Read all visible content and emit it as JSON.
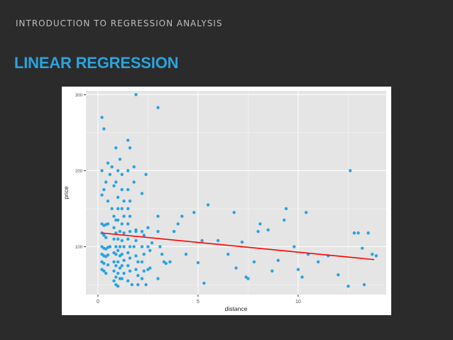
{
  "slide": {
    "header": "INTRODUCTION TO REGRESSION ANALYSIS",
    "title": "LINEAR REGRESSION"
  },
  "colors": {
    "background": "#2b2b2b",
    "title": "#2aa4dc",
    "header": "#bdbdbd",
    "panel": "#e5e5e5",
    "grid": "#ffffff",
    "points": "#29a3df",
    "fit_line": "#ff0000"
  },
  "chart_data": {
    "type": "scatter",
    "title": "",
    "xlabel": "distance",
    "ylabel": "price",
    "xlim": [
      -0.6,
      14.4
    ],
    "ylim": [
      37,
      305
    ],
    "xticks": [
      0,
      5,
      10
    ],
    "yticks": [
      100,
      200,
      300
    ],
    "grid": true,
    "fit_line": {
      "x": [
        0.2,
        13.8
      ],
      "y": [
        118,
        83
      ]
    },
    "points": [
      [
        0.2,
        270
      ],
      [
        0.3,
        255
      ],
      [
        0.2,
        200
      ],
      [
        0.4,
        185
      ],
      [
        0.3,
        175
      ],
      [
        0.2,
        168
      ],
      [
        0.5,
        160
      ],
      [
        0.2,
        130
      ],
      [
        0.3,
        128
      ],
      [
        0.4,
        129
      ],
      [
        0.5,
        130
      ],
      [
        0.2,
        118
      ],
      [
        0.3,
        115
      ],
      [
        0.4,
        112
      ],
      [
        0.2,
        100
      ],
      [
        0.3,
        98
      ],
      [
        0.4,
        97
      ],
      [
        0.5,
        99
      ],
      [
        0.6,
        100
      ],
      [
        0.2,
        90
      ],
      [
        0.3,
        88
      ],
      [
        0.4,
        87
      ],
      [
        0.5,
        89
      ],
      [
        0.2,
        80
      ],
      [
        0.3,
        78
      ],
      [
        0.5,
        76
      ],
      [
        0.2,
        70
      ],
      [
        0.3,
        68
      ],
      [
        0.4,
        65
      ],
      [
        0.5,
        210
      ],
      [
        0.6,
        195
      ],
      [
        0.7,
        205
      ],
      [
        0.8,
        180
      ],
      [
        0.9,
        185
      ],
      [
        0.7,
        150
      ],
      [
        0.8,
        140
      ],
      [
        0.9,
        135
      ],
      [
        0.8,
        125
      ],
      [
        0.9,
        118
      ],
      [
        0.8,
        110
      ],
      [
        0.9,
        100
      ],
      [
        0.8,
        92
      ],
      [
        0.9,
        90
      ],
      [
        0.8,
        80
      ],
      [
        0.9,
        75
      ],
      [
        0.8,
        68
      ],
      [
        0.9,
        60
      ],
      [
        0.8,
        55
      ],
      [
        0.9,
        50
      ],
      [
        0.9,
        230
      ],
      [
        1.0,
        200
      ],
      [
        1.0,
        165
      ],
      [
        1.0,
        150
      ],
      [
        1.0,
        135
      ],
      [
        1.1,
        120
      ],
      [
        1.0,
        110
      ],
      [
        1.1,
        100
      ],
      [
        1.0,
        95
      ],
      [
        1.1,
        88
      ],
      [
        1.0,
        80
      ],
      [
        1.1,
        72
      ],
      [
        1.0,
        65
      ],
      [
        1.1,
        58
      ],
      [
        1.0,
        48
      ],
      [
        1.1,
        215
      ],
      [
        1.2,
        195
      ],
      [
        1.2,
        175
      ],
      [
        1.3,
        160
      ],
      [
        1.2,
        150
      ],
      [
        1.3,
        140
      ],
      [
        1.2,
        130
      ],
      [
        1.3,
        118
      ],
      [
        1.2,
        108
      ],
      [
        1.3,
        100
      ],
      [
        1.2,
        90
      ],
      [
        1.3,
        82
      ],
      [
        1.2,
        75
      ],
      [
        1.3,
        65
      ],
      [
        1.2,
        58
      ],
      [
        1.5,
        240
      ],
      [
        1.6,
        230
      ],
      [
        1.5,
        200
      ],
      [
        1.5,
        175
      ],
      [
        1.6,
        160
      ],
      [
        1.5,
        150
      ],
      [
        1.6,
        140
      ],
      [
        1.5,
        130
      ],
      [
        1.6,
        120
      ],
      [
        1.5,
        110
      ],
      [
        1.6,
        100
      ],
      [
        1.5,
        92
      ],
      [
        1.6,
        85
      ],
      [
        1.5,
        75
      ],
      [
        1.6,
        68
      ],
      [
        1.5,
        55
      ],
      [
        1.7,
        50
      ],
      [
        1.8,
        205
      ],
      [
        1.8,
        185
      ],
      [
        1.9,
        122
      ],
      [
        1.9,
        120
      ],
      [
        1.9,
        108
      ],
      [
        1.8,
        100
      ],
      [
        1.9,
        88
      ],
      [
        2.0,
        80
      ],
      [
        1.9,
        70
      ],
      [
        2.0,
        62
      ],
      [
        2.0,
        50
      ],
      [
        1.9,
        300
      ],
      [
        2.2,
        170
      ],
      [
        2.2,
        120
      ],
      [
        2.3,
        115
      ],
      [
        2.2,
        100
      ],
      [
        2.3,
        90
      ],
      [
        2.2,
        80
      ],
      [
        2.3,
        68
      ],
      [
        2.2,
        58
      ],
      [
        2.4,
        50
      ],
      [
        2.4,
        195
      ],
      [
        2.5,
        125
      ],
      [
        2.5,
        100
      ],
      [
        2.6,
        95
      ],
      [
        2.5,
        70
      ],
      [
        2.6,
        72
      ],
      [
        2.7,
        105
      ],
      [
        3.0,
        283
      ],
      [
        3.0,
        140
      ],
      [
        3.0,
        120
      ],
      [
        3.1,
        100
      ],
      [
        3.2,
        90
      ],
      [
        3.3,
        80
      ],
      [
        3.4,
        78
      ],
      [
        3.0,
        58
      ],
      [
        3.6,
        80
      ],
      [
        3.8,
        120
      ],
      [
        4.0,
        130
      ],
      [
        4.2,
        140
      ],
      [
        4.4,
        90
      ],
      [
        4.8,
        145
      ],
      [
        5.0,
        79
      ],
      [
        5.2,
        108
      ],
      [
        5.3,
        52
      ],
      [
        5.5,
        155
      ],
      [
        6.0,
        108
      ],
      [
        6.5,
        90
      ],
      [
        6.8,
        145
      ],
      [
        6.9,
        72
      ],
      [
        7.2,
        106
      ],
      [
        7.4,
        60
      ],
      [
        7.5,
        58
      ],
      [
        7.8,
        80
      ],
      [
        8.0,
        120
      ],
      [
        8.1,
        130
      ],
      [
        8.5,
        122
      ],
      [
        8.7,
        68
      ],
      [
        9.0,
        82
      ],
      [
        9.3,
        135
      ],
      [
        9.4,
        150
      ],
      [
        9.8,
        100
      ],
      [
        10.0,
        70
      ],
      [
        10.2,
        60
      ],
      [
        10.4,
        145
      ],
      [
        10.5,
        90
      ],
      [
        11.0,
        80
      ],
      [
        11.5,
        88
      ],
      [
        12.0,
        63
      ],
      [
        12.5,
        48
      ],
      [
        12.6,
        200
      ],
      [
        12.8,
        118
      ],
      [
        13.0,
        118
      ],
      [
        13.2,
        98
      ],
      [
        13.3,
        50
      ],
      [
        13.5,
        118
      ],
      [
        13.7,
        90
      ],
      [
        13.9,
        88
      ]
    ]
  }
}
